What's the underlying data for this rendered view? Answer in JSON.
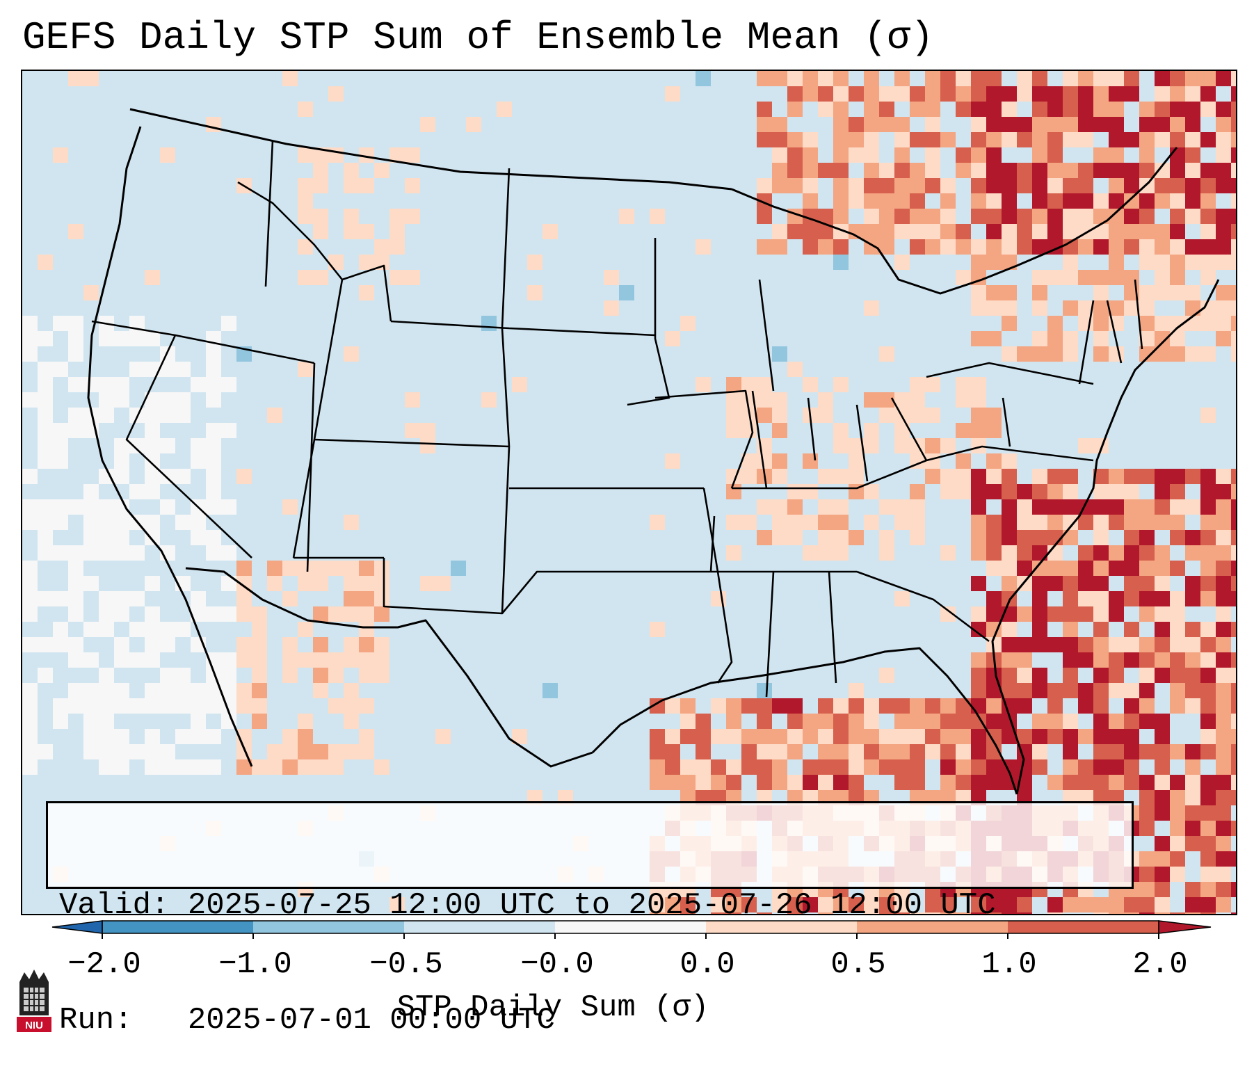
{
  "title": "GEFS Daily STP Sum of Ensemble Mean (σ)",
  "info": {
    "valid_line": "Valid: 2025-07-25 12:00 UTC to 2025-07-26 12:00 UTC",
    "run_line": "Run:   2025-07-01 00:00 UTC"
  },
  "colorbar": {
    "label": "STP Daily Sum (σ)",
    "ticks": [
      "−2.0",
      "−1.0",
      "−0.5",
      "−0.0",
      "0.0",
      "0.5",
      "1.0",
      "2.0"
    ],
    "bins": [
      {
        "from": -2.0,
        "to": -1.0,
        "color": "#4393c3"
      },
      {
        "from": -1.0,
        "to": -0.5,
        "color": "#92c5de"
      },
      {
        "from": -0.5,
        "to": -0.0,
        "color": "#d1e5f0"
      },
      {
        "from": -0.0,
        "to": 0.0,
        "color": "#f7f7f7"
      },
      {
        "from": 0.0,
        "to": 0.5,
        "color": "#fddbc7"
      },
      {
        "from": 0.5,
        "to": 1.0,
        "color": "#f4a582"
      },
      {
        "from": 1.0,
        "to": 2.0,
        "color": "#d6604d"
      }
    ],
    "under_color": "#2166ac",
    "over_color": "#b2182b"
  },
  "map": {
    "projection": "Lambert Conformal Conic",
    "region": "Contiguous United States",
    "background_color": "#d1e5f0"
  },
  "logo": {
    "text": "NIU"
  }
}
